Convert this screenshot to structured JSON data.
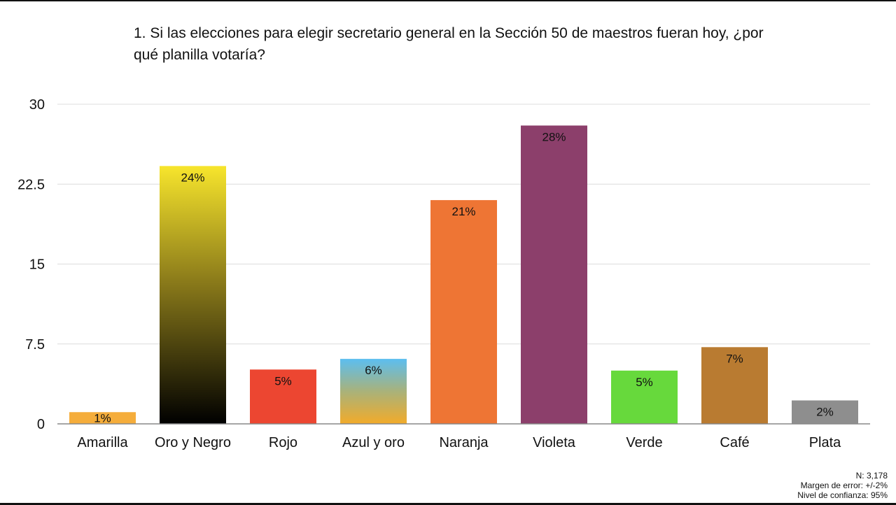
{
  "chart_data": {
    "type": "bar",
    "title": "1. Si las elecciones para elegir secretario general en la Sección 50 de maestros fueran hoy, ¿por qué planilla votaría?",
    "xlabel": "",
    "ylabel": "",
    "ylim": [
      0,
      30
    ],
    "yticks": [
      "0",
      "7.5",
      "15",
      "22.5",
      "30"
    ],
    "grid": true,
    "categories": [
      "Amarilla",
      "Oro y Negro",
      "Rojo",
      "Azul y oro",
      "Naranja",
      "Violeta",
      "Verde",
      "Café",
      "Plata"
    ],
    "values": [
      1.1,
      24.2,
      5.1,
      6.1,
      21,
      28,
      5,
      7.2,
      2.2
    ],
    "data_labels": [
      "1%",
      "24%",
      "5%",
      "6%",
      "21%",
      "28%",
      "5%",
      "7%",
      "2%"
    ],
    "colors": [
      "#f5ad3b",
      "gradient-gold-black",
      "#ec4631",
      "gradient-blue-gold",
      "#ee7534",
      "#8c3f6b",
      "#67d93c",
      "#b97b31",
      "#8e8e8e"
    ]
  },
  "footer": {
    "n": "N: 3,178",
    "margin": "Margen de error: +/-2%",
    "confidence": "Nivel de confianza: 95%"
  }
}
